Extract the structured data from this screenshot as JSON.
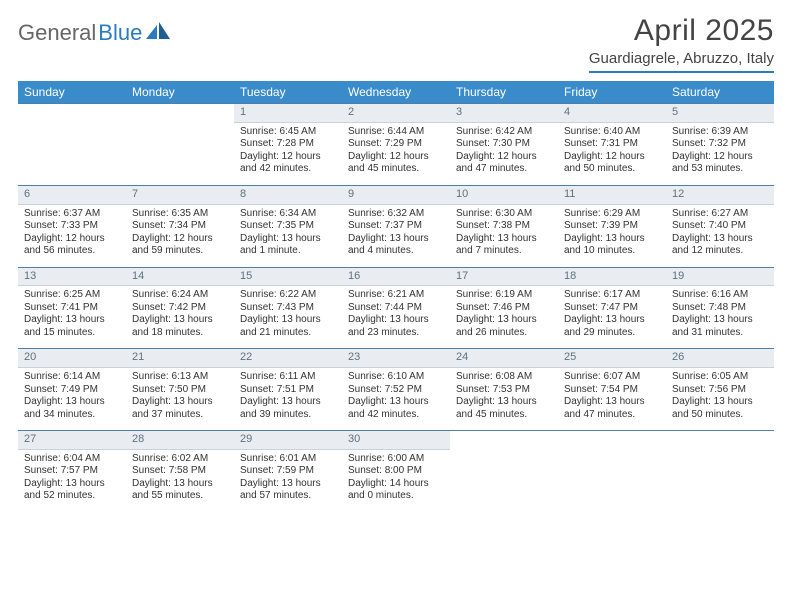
{
  "brand": {
    "part1": "General",
    "part2": "Blue"
  },
  "title": "April 2025",
  "location": "Guardiagrele, Abruzzo, Italy",
  "colors": {
    "header_bg": "#3a8bc9",
    "accent_line": "#2b7bbf",
    "daynum_bg": "#e9edf1",
    "daynum_text": "#5f717f"
  },
  "day_headers": [
    "Sunday",
    "Monday",
    "Tuesday",
    "Wednesday",
    "Thursday",
    "Friday",
    "Saturday"
  ],
  "weeks": [
    [
      null,
      null,
      {
        "n": "1",
        "sr": "Sunrise: 6:45 AM",
        "ss": "Sunset: 7:28 PM",
        "dl1": "Daylight: 12 hours",
        "dl2": "and 42 minutes."
      },
      {
        "n": "2",
        "sr": "Sunrise: 6:44 AM",
        "ss": "Sunset: 7:29 PM",
        "dl1": "Daylight: 12 hours",
        "dl2": "and 45 minutes."
      },
      {
        "n": "3",
        "sr": "Sunrise: 6:42 AM",
        "ss": "Sunset: 7:30 PM",
        "dl1": "Daylight: 12 hours",
        "dl2": "and 47 minutes."
      },
      {
        "n": "4",
        "sr": "Sunrise: 6:40 AM",
        "ss": "Sunset: 7:31 PM",
        "dl1": "Daylight: 12 hours",
        "dl2": "and 50 minutes."
      },
      {
        "n": "5",
        "sr": "Sunrise: 6:39 AM",
        "ss": "Sunset: 7:32 PM",
        "dl1": "Daylight: 12 hours",
        "dl2": "and 53 minutes."
      }
    ],
    [
      {
        "n": "6",
        "sr": "Sunrise: 6:37 AM",
        "ss": "Sunset: 7:33 PM",
        "dl1": "Daylight: 12 hours",
        "dl2": "and 56 minutes."
      },
      {
        "n": "7",
        "sr": "Sunrise: 6:35 AM",
        "ss": "Sunset: 7:34 PM",
        "dl1": "Daylight: 12 hours",
        "dl2": "and 59 minutes."
      },
      {
        "n": "8",
        "sr": "Sunrise: 6:34 AM",
        "ss": "Sunset: 7:35 PM",
        "dl1": "Daylight: 13 hours",
        "dl2": "and 1 minute."
      },
      {
        "n": "9",
        "sr": "Sunrise: 6:32 AM",
        "ss": "Sunset: 7:37 PM",
        "dl1": "Daylight: 13 hours",
        "dl2": "and 4 minutes."
      },
      {
        "n": "10",
        "sr": "Sunrise: 6:30 AM",
        "ss": "Sunset: 7:38 PM",
        "dl1": "Daylight: 13 hours",
        "dl2": "and 7 minutes."
      },
      {
        "n": "11",
        "sr": "Sunrise: 6:29 AM",
        "ss": "Sunset: 7:39 PM",
        "dl1": "Daylight: 13 hours",
        "dl2": "and 10 minutes."
      },
      {
        "n": "12",
        "sr": "Sunrise: 6:27 AM",
        "ss": "Sunset: 7:40 PM",
        "dl1": "Daylight: 13 hours",
        "dl2": "and 12 minutes."
      }
    ],
    [
      {
        "n": "13",
        "sr": "Sunrise: 6:25 AM",
        "ss": "Sunset: 7:41 PM",
        "dl1": "Daylight: 13 hours",
        "dl2": "and 15 minutes."
      },
      {
        "n": "14",
        "sr": "Sunrise: 6:24 AM",
        "ss": "Sunset: 7:42 PM",
        "dl1": "Daylight: 13 hours",
        "dl2": "and 18 minutes."
      },
      {
        "n": "15",
        "sr": "Sunrise: 6:22 AM",
        "ss": "Sunset: 7:43 PM",
        "dl1": "Daylight: 13 hours",
        "dl2": "and 21 minutes."
      },
      {
        "n": "16",
        "sr": "Sunrise: 6:21 AM",
        "ss": "Sunset: 7:44 PM",
        "dl1": "Daylight: 13 hours",
        "dl2": "and 23 minutes."
      },
      {
        "n": "17",
        "sr": "Sunrise: 6:19 AM",
        "ss": "Sunset: 7:46 PM",
        "dl1": "Daylight: 13 hours",
        "dl2": "and 26 minutes."
      },
      {
        "n": "18",
        "sr": "Sunrise: 6:17 AM",
        "ss": "Sunset: 7:47 PM",
        "dl1": "Daylight: 13 hours",
        "dl2": "and 29 minutes."
      },
      {
        "n": "19",
        "sr": "Sunrise: 6:16 AM",
        "ss": "Sunset: 7:48 PM",
        "dl1": "Daylight: 13 hours",
        "dl2": "and 31 minutes."
      }
    ],
    [
      {
        "n": "20",
        "sr": "Sunrise: 6:14 AM",
        "ss": "Sunset: 7:49 PM",
        "dl1": "Daylight: 13 hours",
        "dl2": "and 34 minutes."
      },
      {
        "n": "21",
        "sr": "Sunrise: 6:13 AM",
        "ss": "Sunset: 7:50 PM",
        "dl1": "Daylight: 13 hours",
        "dl2": "and 37 minutes."
      },
      {
        "n": "22",
        "sr": "Sunrise: 6:11 AM",
        "ss": "Sunset: 7:51 PM",
        "dl1": "Daylight: 13 hours",
        "dl2": "and 39 minutes."
      },
      {
        "n": "23",
        "sr": "Sunrise: 6:10 AM",
        "ss": "Sunset: 7:52 PM",
        "dl1": "Daylight: 13 hours",
        "dl2": "and 42 minutes."
      },
      {
        "n": "24",
        "sr": "Sunrise: 6:08 AM",
        "ss": "Sunset: 7:53 PM",
        "dl1": "Daylight: 13 hours",
        "dl2": "and 45 minutes."
      },
      {
        "n": "25",
        "sr": "Sunrise: 6:07 AM",
        "ss": "Sunset: 7:54 PM",
        "dl1": "Daylight: 13 hours",
        "dl2": "and 47 minutes."
      },
      {
        "n": "26",
        "sr": "Sunrise: 6:05 AM",
        "ss": "Sunset: 7:56 PM",
        "dl1": "Daylight: 13 hours",
        "dl2": "and 50 minutes."
      }
    ],
    [
      {
        "n": "27",
        "sr": "Sunrise: 6:04 AM",
        "ss": "Sunset: 7:57 PM",
        "dl1": "Daylight: 13 hours",
        "dl2": "and 52 minutes."
      },
      {
        "n": "28",
        "sr": "Sunrise: 6:02 AM",
        "ss": "Sunset: 7:58 PM",
        "dl1": "Daylight: 13 hours",
        "dl2": "and 55 minutes."
      },
      {
        "n": "29",
        "sr": "Sunrise: 6:01 AM",
        "ss": "Sunset: 7:59 PM",
        "dl1": "Daylight: 13 hours",
        "dl2": "and 57 minutes."
      },
      {
        "n": "30",
        "sr": "Sunrise: 6:00 AM",
        "ss": "Sunset: 8:00 PM",
        "dl1": "Daylight: 14 hours",
        "dl2": "and 0 minutes."
      },
      null,
      null,
      null
    ]
  ]
}
